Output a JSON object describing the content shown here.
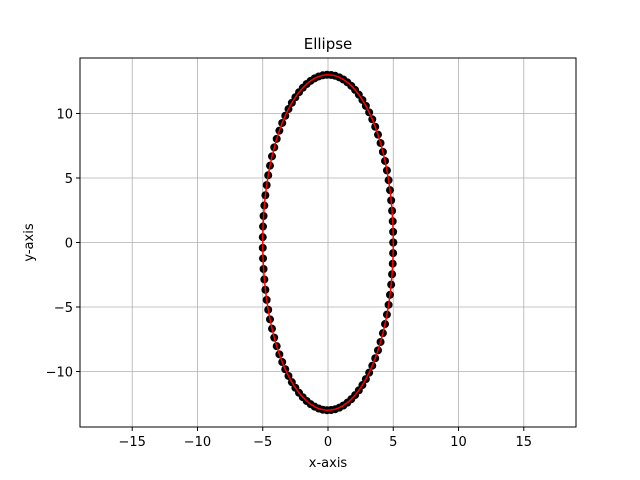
{
  "chart_data": {
    "type": "scatter",
    "title": "Ellipse",
    "xlabel": "x-axis",
    "ylabel": "y-axis",
    "xlim": [
      -19,
      19
    ],
    "ylim": [
      -14.3,
      14.3
    ],
    "xticks": [
      -15,
      -10,
      -5,
      0,
      5,
      10,
      15
    ],
    "yticks": [
      -10,
      -5,
      0,
      5,
      10
    ],
    "xtick_labels": [
      "−15",
      "−10",
      "−5",
      "0",
      "5",
      "10",
      "15"
    ],
    "ytick_labels": [
      "−10",
      "−5",
      "0",
      "5",
      "10"
    ],
    "grid": true,
    "ellipse": {
      "center": [
        0,
        0
      ],
      "semi_axis_x": 5,
      "semi_axis_y": 13,
      "n_points": 100
    },
    "series": [
      {
        "type": "scatter",
        "marker": "circle",
        "color": "#000000"
      },
      {
        "type": "line",
        "color": "#ff0000"
      }
    ]
  }
}
